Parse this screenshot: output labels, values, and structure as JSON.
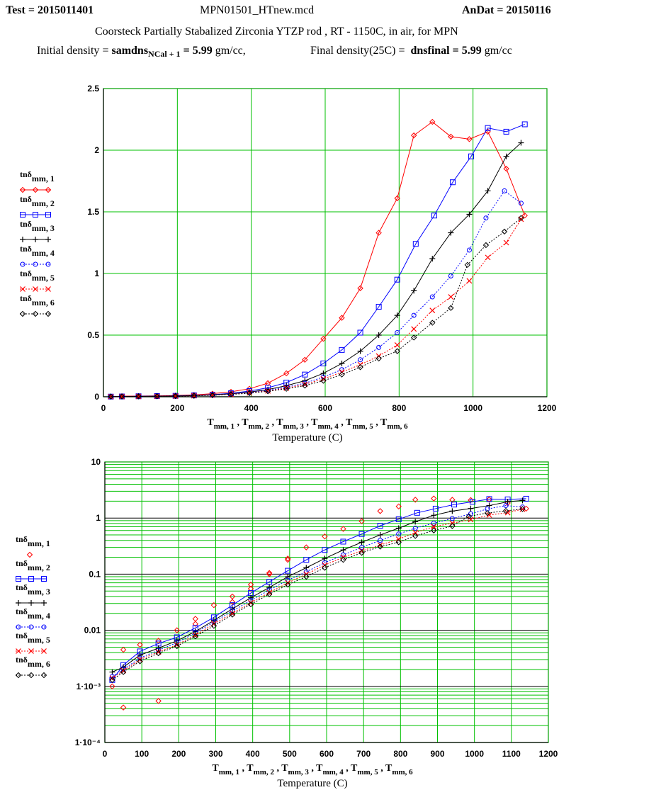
{
  "header": {
    "test_label": "Test",
    "test_value": "2015011401",
    "file_name": "MPN01501_HTnew.mcd",
    "andat_label": "AnDat",
    "andat_value": "20150116",
    "description": "Coorsteck Partially Stabalized Zirconia YTZP rod , RT - 1150C, in air, for MPN",
    "initial_density_label": "Initial density",
    "initial_density_var": "samdns",
    "initial_density_sub": "NCal + 1",
    "initial_density_value": "5.99",
    "initial_density_unit": "gm/cc,",
    "final_density_label": "Final density(25C)",
    "final_density_var": "dnsfinal",
    "final_density_value": "5.99",
    "final_density_unit": "gm/cc"
  },
  "legend_labels": [
    "tnδ",
    "mm, 1",
    "mm, 2",
    "mm, 3",
    "mm, 4",
    "mm, 5",
    "mm, 6"
  ],
  "x_axis_series_label": "T_mm,1 , T_mm,2 , T_mm,3 , T_mm,4 , T_mm,5 , T_mm,6",
  "chart_data": [
    {
      "type": "line",
      "title": "",
      "xlabel": "Temperature (C)",
      "ylabel": "",
      "xlim": [
        0,
        1200
      ],
      "ylim": [
        0,
        2.5
      ],
      "yscale": "linear",
      "grid": true,
      "legend": "left",
      "xticks": [
        "0",
        "200",
        "400",
        "600",
        "800",
        "1000",
        "1200"
      ],
      "yticks": [
        "0",
        "0.5",
        "1",
        "1.5",
        "2",
        "2.5"
      ],
      "series": [
        {
          "name": "tnδ mm, 1",
          "color": "#ff0000",
          "marker": "diamond",
          "style": "solid",
          "x": [
            20,
            50,
            95,
            145,
            195,
            245,
            295,
            345,
            395,
            445,
            495,
            545,
            595,
            645,
            695,
            745,
            795,
            840,
            890,
            940,
            990,
            1040,
            1090,
            1140
          ],
          "y": [
            0.001,
            0.005,
            0.006,
            0.007,
            0.01,
            0.015,
            0.025,
            0.04,
            0.065,
            0.11,
            0.19,
            0.3,
            0.47,
            0.64,
            0.88,
            1.33,
            1.61,
            2.12,
            2.23,
            2.11,
            2.09,
            2.15,
            1.85,
            1.47
          ]
        },
        {
          "name": "tnδ mm, 2",
          "color": "#0000ff",
          "marker": "square",
          "style": "solid",
          "x": [
            20,
            50,
            95,
            145,
            195,
            245,
            295,
            345,
            395,
            445,
            495,
            545,
            595,
            645,
            695,
            745,
            795,
            845,
            895,
            945,
            995,
            1040,
            1090,
            1140
          ],
          "y": [
            0.0013,
            0.0024,
            0.0042,
            0.0058,
            0.0075,
            0.011,
            0.017,
            0.028,
            0.046,
            0.073,
            0.115,
            0.18,
            0.27,
            0.38,
            0.52,
            0.73,
            0.95,
            1.24,
            1.47,
            1.74,
            1.95,
            2.18,
            2.15,
            2.21
          ]
        },
        {
          "name": "tnδ mm, 3",
          "color": "#000000",
          "marker": "plus",
          "style": "solid",
          "x": [
            20,
            50,
            95,
            145,
            195,
            245,
            295,
            345,
            395,
            445,
            495,
            545,
            595,
            645,
            695,
            745,
            795,
            840,
            890,
            940,
            990,
            1040,
            1090,
            1130
          ],
          "y": [
            0.0018,
            0.0022,
            0.0036,
            0.0048,
            0.0065,
            0.0095,
            0.015,
            0.024,
            0.038,
            0.058,
            0.09,
            0.13,
            0.19,
            0.27,
            0.37,
            0.5,
            0.66,
            0.86,
            1.12,
            1.33,
            1.48,
            1.67,
            1.95,
            2.06
          ]
        },
        {
          "name": "tnδ mm, 4",
          "color": "#0000ff",
          "marker": "circle",
          "style": "dotted",
          "x": [
            20,
            50,
            95,
            145,
            195,
            245,
            295,
            345,
            395,
            445,
            495,
            545,
            595,
            645,
            695,
            745,
            795,
            840,
            890,
            940,
            990,
            1035,
            1085,
            1130
          ],
          "y": [
            0.0015,
            0.002,
            0.0032,
            0.0044,
            0.006,
            0.009,
            0.014,
            0.022,
            0.034,
            0.052,
            0.078,
            0.11,
            0.16,
            0.22,
            0.3,
            0.4,
            0.52,
            0.66,
            0.81,
            0.98,
            1.19,
            1.45,
            1.67,
            1.57
          ]
        },
        {
          "name": "tnδ mm, 5",
          "color": "#ff0000",
          "marker": "x",
          "style": "dotted",
          "x": [
            20,
            50,
            95,
            145,
            195,
            245,
            295,
            345,
            395,
            445,
            495,
            545,
            595,
            645,
            695,
            745,
            795,
            840,
            890,
            940,
            990,
            1040,
            1090,
            1130
          ],
          "y": [
            0.0014,
            0.0019,
            0.003,
            0.0041,
            0.0055,
            0.0082,
            0.013,
            0.02,
            0.031,
            0.047,
            0.07,
            0.1,
            0.145,
            0.2,
            0.26,
            0.33,
            0.42,
            0.55,
            0.7,
            0.81,
            0.94,
            1.13,
            1.25,
            1.44
          ]
        },
        {
          "name": "tnδ mm, 6",
          "color": "#000000",
          "marker": "diamond",
          "style": "dotted",
          "x": [
            20,
            50,
            95,
            145,
            195,
            245,
            295,
            345,
            395,
            445,
            495,
            545,
            595,
            645,
            695,
            745,
            795,
            840,
            890,
            940,
            985,
            1035,
            1085,
            1130
          ],
          "y": [
            0.0013,
            0.0018,
            0.0028,
            0.0039,
            0.0052,
            0.0078,
            0.012,
            0.019,
            0.029,
            0.044,
            0.065,
            0.09,
            0.13,
            0.18,
            0.24,
            0.31,
            0.37,
            0.48,
            0.6,
            0.72,
            1.07,
            1.23,
            1.34,
            1.45
          ]
        }
      ]
    },
    {
      "type": "scatter",
      "title": "",
      "xlabel": "Temperature (C)",
      "ylabel": "",
      "xlim": [
        0,
        1200
      ],
      "ylim": [
        0.0001,
        10
      ],
      "yscale": "log",
      "grid": true,
      "legend": "left",
      "xticks": [
        "0",
        "100",
        "200",
        "300",
        "400",
        "500",
        "600",
        "700",
        "800",
        "900",
        "1000",
        "1100",
        "1200"
      ],
      "yticks": [
        "1·10⁻⁴",
        "1·10⁻³",
        "0.01",
        "0.1",
        "1",
        "10"
      ],
      "series": [
        {
          "name": "tnδ mm, 1",
          "color": "#ff0000",
          "marker": "diamond",
          "style": "none",
          "x": [
            20,
            50,
            50,
            95,
            145,
            145,
            195,
            245,
            245,
            295,
            345,
            345,
            395,
            395,
            445,
            445,
            495,
            495,
            545,
            595,
            645,
            695,
            745,
            795,
            840,
            890,
            940,
            990,
            1040,
            1090,
            1140
          ],
          "y": [
            0.001,
            0.0045,
            0.00042,
            0.0055,
            0.0065,
            0.00055,
            0.01,
            0.013,
            0.016,
            0.028,
            0.032,
            0.04,
            0.055,
            0.065,
            0.1,
            0.105,
            0.18,
            0.19,
            0.3,
            0.47,
            0.64,
            0.88,
            1.33,
            1.61,
            2.12,
            2.23,
            2.11,
            2.09,
            2.15,
            1.85,
            1.47
          ]
        },
        {
          "name": "tnδ mm, 2",
          "color": "#0000ff",
          "marker": "square",
          "style": "solid",
          "x": [
            20,
            50,
            95,
            145,
            195,
            245,
            295,
            345,
            395,
            445,
            495,
            545,
            595,
            645,
            695,
            745,
            795,
            845,
            895,
            945,
            995,
            1040,
            1090,
            1140
          ],
          "y": [
            0.0013,
            0.0024,
            0.0042,
            0.0058,
            0.0075,
            0.011,
            0.017,
            0.028,
            0.046,
            0.073,
            0.115,
            0.18,
            0.27,
            0.38,
            0.52,
            0.73,
            0.95,
            1.24,
            1.47,
            1.74,
            1.95,
            2.18,
            2.15,
            2.21
          ]
        },
        {
          "name": "tnδ mm, 3",
          "color": "#000000",
          "marker": "plus",
          "style": "solid",
          "x": [
            20,
            50,
            95,
            145,
            195,
            245,
            295,
            345,
            395,
            445,
            495,
            545,
            595,
            645,
            695,
            745,
            795,
            840,
            890,
            940,
            990,
            1040,
            1090,
            1130
          ],
          "y": [
            0.0018,
            0.0022,
            0.0036,
            0.0048,
            0.0065,
            0.0095,
            0.015,
            0.024,
            0.038,
            0.058,
            0.09,
            0.13,
            0.19,
            0.27,
            0.37,
            0.5,
            0.66,
            0.86,
            1.12,
            1.33,
            1.48,
            1.67,
            1.95,
            2.06
          ]
        },
        {
          "name": "tnδ mm, 4",
          "color": "#0000ff",
          "marker": "circle",
          "style": "dotted",
          "x": [
            20,
            50,
            95,
            145,
            195,
            245,
            295,
            345,
            395,
            445,
            495,
            545,
            595,
            645,
            695,
            745,
            795,
            840,
            890,
            940,
            990,
            1035,
            1085,
            1130
          ],
          "y": [
            0.0015,
            0.002,
            0.0032,
            0.0044,
            0.006,
            0.009,
            0.014,
            0.022,
            0.034,
            0.052,
            0.078,
            0.11,
            0.16,
            0.22,
            0.3,
            0.4,
            0.52,
            0.66,
            0.81,
            0.98,
            1.19,
            1.45,
            1.67,
            1.57
          ]
        },
        {
          "name": "tnδ mm, 5",
          "color": "#ff0000",
          "marker": "x",
          "style": "dotted",
          "x": [
            20,
            50,
            95,
            145,
            195,
            245,
            295,
            345,
            395,
            445,
            495,
            545,
            595,
            645,
            695,
            745,
            795,
            840,
            890,
            940,
            990,
            1040,
            1090,
            1130
          ],
          "y": [
            0.0014,
            0.0019,
            0.003,
            0.0041,
            0.0055,
            0.0082,
            0.013,
            0.02,
            0.031,
            0.047,
            0.07,
            0.1,
            0.145,
            0.2,
            0.26,
            0.33,
            0.42,
            0.55,
            0.7,
            0.81,
            0.94,
            1.13,
            1.25,
            1.44
          ]
        },
        {
          "name": "tnδ mm, 6",
          "color": "#000000",
          "marker": "diamond",
          "style": "dotted",
          "x": [
            20,
            50,
            95,
            145,
            195,
            245,
            295,
            345,
            395,
            445,
            495,
            545,
            595,
            645,
            695,
            745,
            795,
            840,
            890,
            940,
            985,
            1035,
            1085,
            1130
          ],
          "y": [
            0.0013,
            0.0018,
            0.0028,
            0.0039,
            0.0052,
            0.0078,
            0.012,
            0.019,
            0.029,
            0.044,
            0.065,
            0.09,
            0.13,
            0.18,
            0.24,
            0.31,
            0.37,
            0.48,
            0.6,
            0.72,
            1.07,
            1.23,
            1.34,
            1.45
          ]
        }
      ]
    }
  ]
}
